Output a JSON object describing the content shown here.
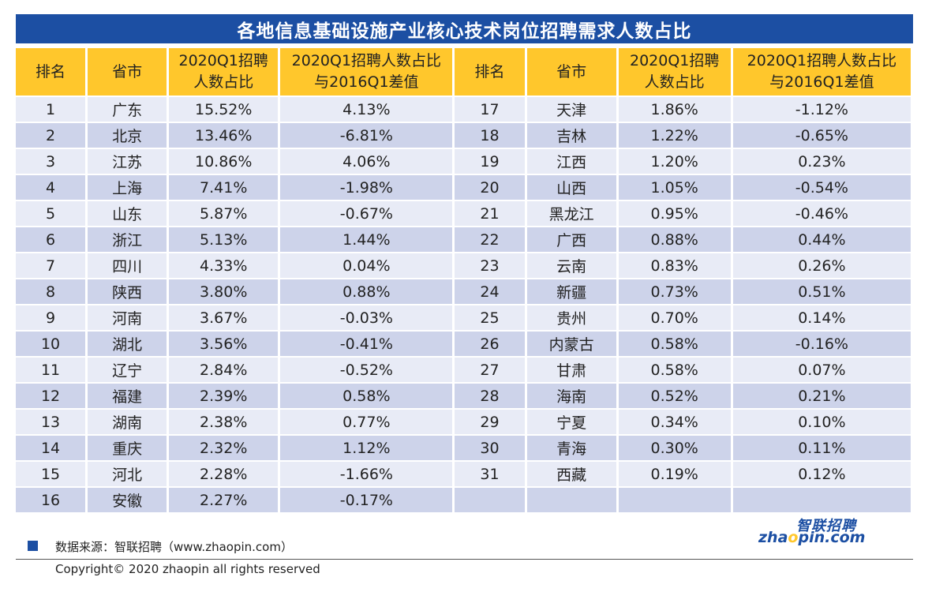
{
  "title": "各地信息基础设施产业核心技术岗位招聘需求人数占比",
  "headers": {
    "rank": "排名",
    "province": "省市",
    "share_l1": "2020Q1招聘",
    "share_l2": "人数占比",
    "diff_l1": "2020Q1招聘人数占比",
    "diff_l2": "与2016Q1差值"
  },
  "rows": [
    {
      "left": {
        "rank": "1",
        "province": "广东",
        "share": "15.52%",
        "diff": "4.13%"
      },
      "right": {
        "rank": "17",
        "province": "天津",
        "share": "1.86%",
        "diff": "-1.12%"
      }
    },
    {
      "left": {
        "rank": "2",
        "province": "北京",
        "share": "13.46%",
        "diff": "-6.81%"
      },
      "right": {
        "rank": "18",
        "province": "吉林",
        "share": "1.22%",
        "diff": "-0.65%"
      }
    },
    {
      "left": {
        "rank": "3",
        "province": "江苏",
        "share": "10.86%",
        "diff": "4.06%"
      },
      "right": {
        "rank": "19",
        "province": "江西",
        "share": "1.20%",
        "diff": "0.23%"
      }
    },
    {
      "left": {
        "rank": "4",
        "province": "上海",
        "share": "7.41%",
        "diff": "-1.98%"
      },
      "right": {
        "rank": "20",
        "province": "山西",
        "share": "1.05%",
        "diff": "-0.54%"
      }
    },
    {
      "left": {
        "rank": "5",
        "province": "山东",
        "share": "5.87%",
        "diff": "-0.67%"
      },
      "right": {
        "rank": "21",
        "province": "黑龙江",
        "share": "0.95%",
        "diff": "-0.46%"
      }
    },
    {
      "left": {
        "rank": "6",
        "province": "浙江",
        "share": "5.13%",
        "diff": "1.44%"
      },
      "right": {
        "rank": "22",
        "province": "广西",
        "share": "0.88%",
        "diff": "0.44%"
      }
    },
    {
      "left": {
        "rank": "7",
        "province": "四川",
        "share": "4.33%",
        "diff": "0.04%"
      },
      "right": {
        "rank": "23",
        "province": "云南",
        "share": "0.83%",
        "diff": "0.26%"
      }
    },
    {
      "left": {
        "rank": "8",
        "province": "陕西",
        "share": "3.80%",
        "diff": "0.88%"
      },
      "right": {
        "rank": "24",
        "province": "新疆",
        "share": "0.73%",
        "diff": "0.51%"
      }
    },
    {
      "left": {
        "rank": "9",
        "province": "河南",
        "share": "3.67%",
        "diff": "-0.03%"
      },
      "right": {
        "rank": "25",
        "province": "贵州",
        "share": "0.70%",
        "diff": "0.14%"
      }
    },
    {
      "left": {
        "rank": "10",
        "province": "湖北",
        "share": "3.56%",
        "diff": "-0.41%"
      },
      "right": {
        "rank": "26",
        "province": "内蒙古",
        "share": "0.58%",
        "diff": "-0.16%"
      }
    },
    {
      "left": {
        "rank": "11",
        "province": "辽宁",
        "share": "2.84%",
        "diff": "-0.52%"
      },
      "right": {
        "rank": "27",
        "province": "甘肃",
        "share": "0.58%",
        "diff": "0.07%"
      }
    },
    {
      "left": {
        "rank": "12",
        "province": "福建",
        "share": "2.39%",
        "diff": "0.58%"
      },
      "right": {
        "rank": "28",
        "province": "海南",
        "share": "0.52%",
        "diff": "0.21%"
      }
    },
    {
      "left": {
        "rank": "13",
        "province": "湖南",
        "share": "2.38%",
        "diff": "0.77%"
      },
      "right": {
        "rank": "29",
        "province": "宁夏",
        "share": "0.34%",
        "diff": "0.10%"
      }
    },
    {
      "left": {
        "rank": "14",
        "province": "重庆",
        "share": "2.32%",
        "diff": "1.12%"
      },
      "right": {
        "rank": "30",
        "province": "青海",
        "share": "0.30%",
        "diff": "0.11%"
      }
    },
    {
      "left": {
        "rank": "15",
        "province": "河北",
        "share": "2.28%",
        "diff": "-1.66%"
      },
      "right": {
        "rank": "31",
        "province": "西藏",
        "share": "0.19%",
        "diff": "0.12%"
      }
    },
    {
      "left": {
        "rank": "16",
        "province": "安徽",
        "share": "2.27%",
        "diff": "-0.17%"
      },
      "right": {
        "rank": "",
        "province": "",
        "share": "",
        "diff": ""
      }
    }
  ],
  "source": "数据来源：智联招聘（www.zhaopin.com）",
  "copyright": "Copyright© 2020 zhaopin all rights reserved",
  "logo": {
    "cn": "智联招聘",
    "en_pre": "zha",
    "en_dot": "o",
    "en_post": "pin.com"
  },
  "colors": {
    "title_bg": "#1c4fa3",
    "header_bg": "#ffc72c",
    "row_light": "#e8ebf6",
    "row_dark": "#cdd3ea"
  }
}
